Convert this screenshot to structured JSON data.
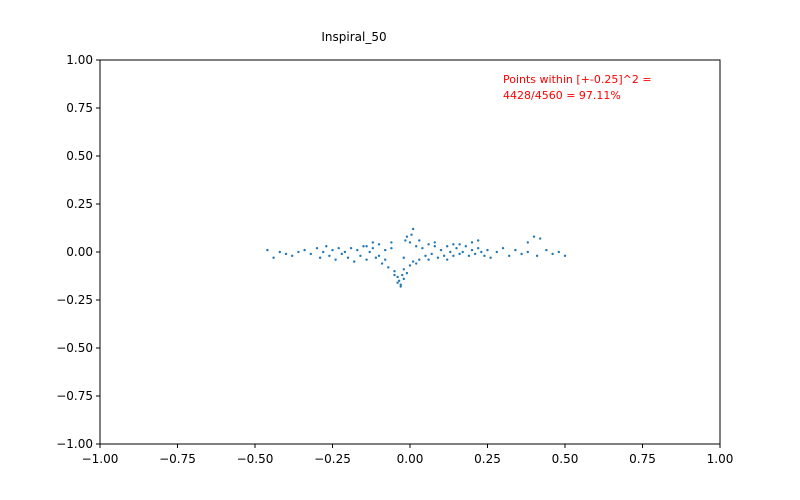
{
  "chart_data": {
    "type": "scatter",
    "title": "Inspiral_50",
    "xlabel": "",
    "ylabel": "",
    "xlim": [
      -1.0,
      1.0
    ],
    "ylim": [
      -1.0,
      1.0
    ],
    "x_ticks": [
      "−1.00",
      "−0.75",
      "−0.50",
      "−0.25",
      "0.00",
      "0.25",
      "0.50",
      "0.75",
      "1.00"
    ],
    "y_ticks": [
      "1.00",
      "0.75",
      "0.50",
      "0.25",
      "0.00",
      "−0.25",
      "−0.50",
      "−0.75",
      "−1.00"
    ],
    "x_tick_values": [
      -1.0,
      -0.75,
      -0.5,
      -0.25,
      0.0,
      0.25,
      0.5,
      0.75,
      1.0
    ],
    "y_tick_values": [
      1.0,
      0.75,
      0.5,
      0.25,
      0.0,
      -0.25,
      -0.5,
      -0.75,
      -1.0
    ],
    "grid": false,
    "point_color": "#1f77b4",
    "annotation": {
      "line1": "Points within [+-0.25]^2 =",
      "line2": "4428/4560 = 97.11%",
      "color": "#ff0000"
    },
    "series": [
      {
        "points": [
          [
            -0.46,
            0.01
          ],
          [
            -0.44,
            -0.03
          ],
          [
            -0.42,
            0.0
          ],
          [
            -0.4,
            -0.01
          ],
          [
            -0.38,
            -0.02
          ],
          [
            -0.36,
            0.0
          ],
          [
            -0.34,
            0.01
          ],
          [
            -0.32,
            -0.01
          ],
          [
            -0.3,
            0.02
          ],
          [
            -0.29,
            -0.03
          ],
          [
            -0.28,
            0.0
          ],
          [
            -0.27,
            0.03
          ],
          [
            -0.26,
            -0.02
          ],
          [
            -0.25,
            0.01
          ],
          [
            -0.24,
            -0.04
          ],
          [
            -0.23,
            0.02
          ],
          [
            -0.22,
            -0.01
          ],
          [
            -0.21,
            0.0
          ],
          [
            -0.2,
            -0.03
          ],
          [
            -0.19,
            0.02
          ],
          [
            -0.18,
            -0.05
          ],
          [
            -0.17,
            0.01
          ],
          [
            -0.16,
            -0.02
          ],
          [
            -0.15,
            0.03
          ],
          [
            -0.14,
            -0.04
          ],
          [
            -0.13,
            0.0
          ],
          [
            -0.12,
            0.02
          ],
          [
            -0.11,
            -0.03
          ],
          [
            -0.1,
            0.04
          ],
          [
            -0.09,
            -0.06
          ],
          [
            -0.08,
            0.01
          ],
          [
            -0.07,
            -0.08
          ],
          [
            -0.06,
            0.05
          ],
          [
            -0.05,
            -0.1
          ],
          [
            -0.04,
            -0.13
          ],
          [
            -0.035,
            -0.15
          ],
          [
            -0.03,
            -0.17
          ],
          [
            -0.025,
            -0.12
          ],
          [
            -0.02,
            -0.09
          ],
          [
            -0.015,
            0.06
          ],
          [
            -0.01,
            0.08
          ],
          [
            0.0,
            0.05
          ],
          [
            0.005,
            0.09
          ],
          [
            0.01,
            0.12
          ],
          [
            0.02,
            0.03
          ],
          [
            0.03,
            -0.04
          ],
          [
            0.04,
            0.02
          ],
          [
            0.05,
            -0.02
          ],
          [
            0.06,
            0.04
          ],
          [
            0.07,
            -0.01
          ],
          [
            0.08,
            0.03
          ],
          [
            0.09,
            -0.03
          ],
          [
            0.1,
            0.01
          ],
          [
            0.11,
            -0.02
          ],
          [
            0.12,
            0.03
          ],
          [
            0.13,
            0.0
          ],
          [
            0.14,
            -0.02
          ],
          [
            0.15,
            0.02
          ],
          [
            0.16,
            -0.01
          ],
          [
            0.17,
            0.0
          ],
          [
            0.18,
            0.03
          ],
          [
            0.19,
            -0.02
          ],
          [
            0.2,
            0.01
          ],
          [
            0.21,
            -0.01
          ],
          [
            0.22,
            0.02
          ],
          [
            0.23,
            0.0
          ],
          [
            0.24,
            -0.02
          ],
          [
            0.25,
            0.01
          ],
          [
            0.26,
            -0.03
          ],
          [
            0.28,
            0.0
          ],
          [
            0.3,
            0.02
          ],
          [
            0.32,
            -0.02
          ],
          [
            0.34,
            0.01
          ],
          [
            0.36,
            -0.01
          ],
          [
            0.38,
            0.0
          ],
          [
            0.4,
            0.08
          ],
          [
            0.42,
            0.07
          ],
          [
            0.41,
            -0.02
          ],
          [
            0.44,
            0.01
          ],
          [
            0.46,
            -0.01
          ],
          [
            0.48,
            0.0
          ],
          [
            0.5,
            -0.02
          ],
          [
            0.38,
            0.05
          ],
          [
            0.22,
            0.06
          ],
          [
            0.2,
            0.05
          ],
          [
            -0.03,
            -0.18
          ],
          [
            -0.04,
            -0.16
          ],
          [
            -0.02,
            -0.14
          ],
          [
            -0.05,
            -0.12
          ],
          [
            -0.01,
            -0.11
          ],
          [
            0.0,
            -0.07
          ],
          [
            0.01,
            -0.05
          ],
          [
            -0.02,
            -0.03
          ],
          [
            0.02,
            -0.06
          ],
          [
            0.03,
            0.06
          ],
          [
            -0.06,
            0.02
          ],
          [
            -0.08,
            -0.04
          ],
          [
            0.06,
            -0.04
          ],
          [
            0.08,
            0.05
          ],
          [
            -0.1,
            -0.02
          ],
          [
            0.12,
            -0.04
          ],
          [
            -0.12,
            0.05
          ],
          [
            0.14,
            0.04
          ],
          [
            -0.14,
            0.03
          ],
          [
            0.16,
            0.04
          ]
        ]
      }
    ]
  }
}
